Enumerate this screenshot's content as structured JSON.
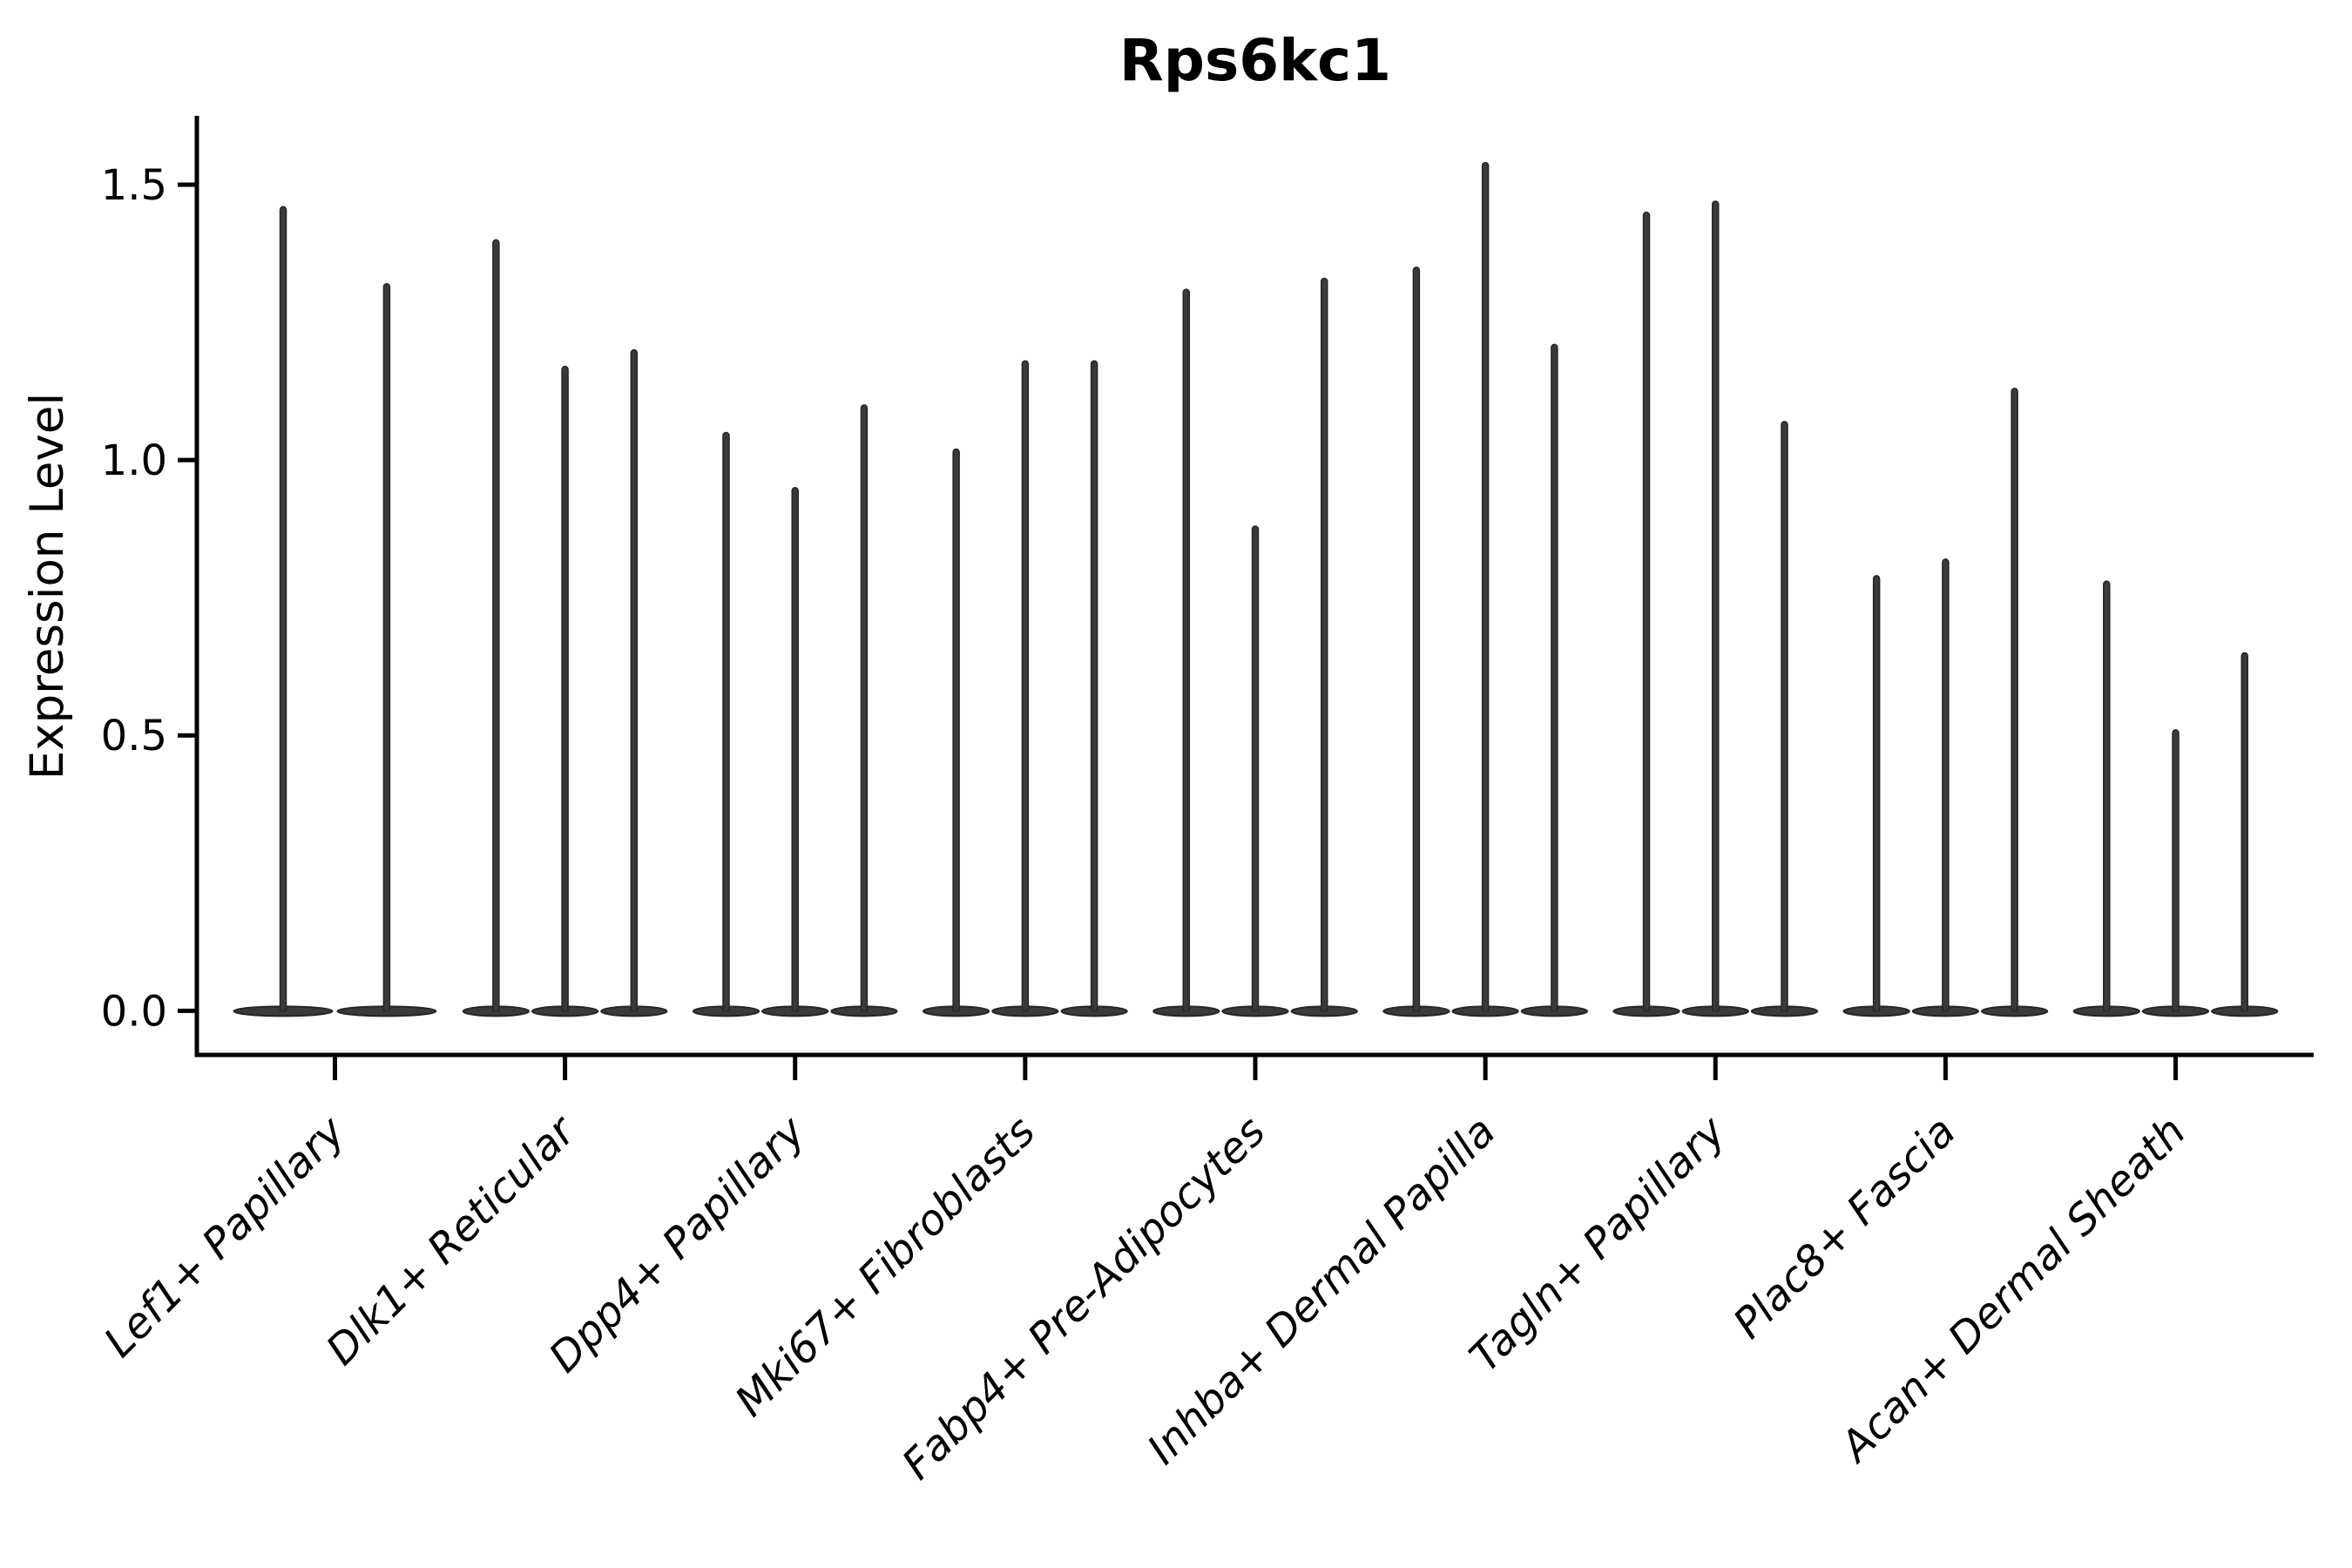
{
  "figure": {
    "title": "Rps6kc1",
    "ylabel": "Expression Level"
  },
  "chart_data": {
    "type": "violin",
    "title": "Rps6kc1",
    "xlabel": "",
    "ylabel": "Expression Level",
    "grid": false,
    "legend": "none",
    "background": "#ffffff",
    "ink_color": "#000000",
    "violin_fill": "#3a3a3a",
    "violin_stroke": "#262626",
    "ylim": [
      -0.077,
      1.617
    ],
    "y_ticks": [
      0.0,
      0.5,
      1.0,
      1.5
    ],
    "y_tick_labels": [
      "0.0",
      "0.5",
      "1.0",
      "1.5"
    ],
    "categories": [
      "Lef1+ Papillary",
      "Dlk1+ Reticular",
      "Dpp4+ Papillary",
      "Mki67+ Fibroblasts",
      "Fabp4+ Pre-Adipocytes",
      "Inhba+ Dermal Papilla",
      "Tagln+ Papillary",
      "Plac8+ Fascia",
      "Acan+ Dermal Sheath"
    ],
    "violins": [
      {
        "category": "Lef1+ Papillary",
        "maxima": [
          1.46,
          1.32
        ]
      },
      {
        "category": "Dlk1+ Reticular",
        "maxima": [
          1.4,
          1.17,
          1.2
        ]
      },
      {
        "category": "Dpp4+ Papillary",
        "maxima": [
          1.05,
          0.95,
          1.1
        ]
      },
      {
        "category": "Mki67+ Fibroblasts",
        "maxima": [
          1.02,
          1.18,
          1.18
        ]
      },
      {
        "category": "Fabp4+ Pre-Adipocytes",
        "maxima": [
          1.31,
          0.88,
          1.33
        ]
      },
      {
        "category": "Inhba+ Dermal Papilla",
        "maxima": [
          1.35,
          1.54,
          1.21
        ]
      },
      {
        "category": "Tagln+ Papillary",
        "maxima": [
          1.45,
          1.47,
          1.07
        ]
      },
      {
        "category": "Plac8+ Fascia",
        "maxima": [
          0.79,
          0.82,
          1.13
        ]
      },
      {
        "category": "Acan+ Dermal Sheath",
        "maxima": [
          0.78,
          0.51,
          0.65
        ]
      }
    ],
    "all_violins_floor_value": 0.0,
    "violin_slot_width": 0.9
  }
}
